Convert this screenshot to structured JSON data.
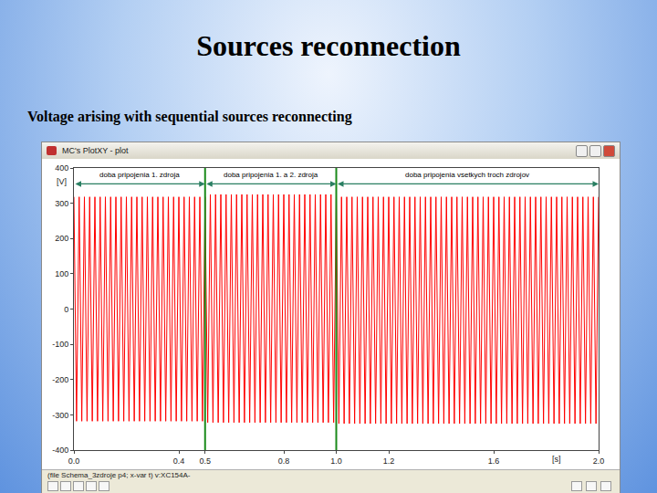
{
  "chart_data": {
    "type": "line",
    "title": "Sources reconnection",
    "subtitle": "Voltage arising with sequential sources reconnecting",
    "window_title": "MC's PlotXY - plot",
    "footnote": "(file Schema_3zdroje p4; x-var t) v:XC154A-",
    "x_label": "[s]",
    "y_label": "[V]",
    "color": "#ff0000",
    "grid": false,
    "xlim": [
      0,
      2
    ],
    "xticks": [
      {
        "value": 0,
        "label": "0.0"
      },
      0.4,
      0.5,
      0.8,
      {
        "value": 1,
        "label": "1.0"
      },
      1.2,
      1.6,
      {
        "value": 2,
        "label": "2.0"
      }
    ],
    "ylim": [
      -400,
      400
    ],
    "yticks": [
      -400,
      -300,
      -200,
      -100,
      0,
      100,
      200,
      300,
      400
    ],
    "vlines": [
      {
        "x": 0.5,
        "color": "#1a8a1a"
      },
      {
        "x": 1,
        "color": "#1a8a1a"
      }
    ],
    "annotations": [
      {
        "text": "doba pripojenia 1. zdroja",
        "x0": 0,
        "x1": 0.5,
        "y": 355
      },
      {
        "text": "doba pripojenia 1. a 2. zdroja",
        "x0": 0.5,
        "x1": 1,
        "y": 355
      },
      {
        "text": "doba pripojenia vsetkych troch zdrojov",
        "x0": 1,
        "x1": 2,
        "y": 355
      }
    ],
    "x": [
      0,
      0.01,
      0.02,
      0.03,
      0.04,
      0.05,
      0.06,
      0.07,
      0.08,
      0.09,
      0.1,
      0.11,
      0.12,
      0.13,
      0.14,
      0.15,
      0.16,
      0.17,
      0.18,
      0.19,
      0.2,
      0.21,
      0.22,
      0.23,
      0.24,
      0.25,
      0.26,
      0.27,
      0.28,
      0.29,
      0.3,
      0.31,
      0.32,
      0.33,
      0.34,
      0.35,
      0.36,
      0.37,
      0.38,
      0.39,
      0.4,
      0.41,
      0.42,
      0.43,
      0.44,
      0.45,
      0.46,
      0.47,
      0.48,
      0.49,
      0.5,
      0.51,
      0.52,
      0.53,
      0.54,
      0.55,
      0.56,
      0.57,
      0.58,
      0.59,
      0.6,
      0.61,
      0.62,
      0.63,
      0.64,
      0.65,
      0.66,
      0.67,
      0.68,
      0.69,
      0.7,
      0.71,
      0.72,
      0.73,
      0.74,
      0.75,
      0.76,
      0.77,
      0.78,
      0.79,
      0.8,
      0.81,
      0.82,
      0.83,
      0.84,
      0.85,
      0.86,
      0.87,
      0.88,
      0.89,
      0.9,
      0.91,
      0.92,
      0.93,
      0.94,
      0.95,
      0.96,
      0.97,
      0.98,
      0.99,
      1,
      1.01,
      1.02,
      1.03,
      1.04,
      1.05,
      1.06,
      1.07,
      1.08,
      1.09,
      1.1,
      1.11,
      1.12,
      1.13,
      1.14,
      1.15,
      1.16,
      1.17,
      1.18,
      1.19,
      1.2,
      1.21,
      1.22,
      1.23,
      1.24,
      1.25,
      1.26,
      1.27,
      1.28,
      1.29,
      1.3,
      1.31,
      1.32,
      1.33,
      1.34,
      1.35,
      1.36,
      1.37,
      1.38,
      1.39,
      1.4,
      1.41,
      1.42,
      1.43,
      1.44,
      1.45,
      1.46,
      1.47,
      1.48,
      1.49,
      1.5,
      1.51,
      1.52,
      1.53,
      1.54,
      1.55,
      1.56,
      1.57,
      1.58,
      1.59,
      1.6,
      1.61,
      1.62,
      1.63,
      1.64,
      1.65,
      1.66,
      1.67,
      1.68,
      1.69,
      1.7,
      1.71,
      1.72,
      1.73,
      1.74,
      1.75,
      1.76,
      1.77,
      1.78,
      1.79,
      1.8,
      1.81,
      1.82,
      1.83,
      1.84,
      1.85,
      1.86,
      1.87,
      1.88,
      1.89,
      1.9,
      1.91,
      1.92,
      1.93,
      1.94,
      1.95,
      1.96,
      1.97,
      1.98,
      1.99,
      2
    ],
    "values": [
      318,
      -318,
      318,
      -318,
      318,
      -318,
      318,
      -318,
      318,
      -318,
      318,
      -318,
      318,
      -318,
      318,
      -318,
      318,
      -318,
      318,
      -318,
      318,
      -318,
      318,
      -318,
      318,
      -318,
      318,
      -318,
      318,
      -318,
      318,
      -318,
      318,
      -318,
      318,
      -318,
      318,
      -318,
      318,
      -318,
      318,
      -318,
      318,
      -318,
      318,
      -318,
      318,
      -318,
      318,
      -318,
      318,
      -322,
      325,
      -322,
      325,
      -322,
      325,
      -322,
      325,
      -322,
      325,
      -322,
      325,
      -322,
      325,
      -322,
      325,
      -322,
      325,
      -322,
      325,
      -322,
      325,
      -322,
      325,
      -322,
      325,
      -322,
      325,
      -322,
      325,
      -322,
      325,
      -322,
      325,
      -322,
      325,
      -322,
      325,
      -322,
      325,
      -322,
      325,
      -322,
      325,
      -322,
      325,
      -322,
      325,
      -322,
      325,
      -325,
      318,
      -325,
      318,
      -325,
      318,
      -325,
      318,
      -325,
      318,
      -325,
      318,
      -325,
      318,
      -325,
      318,
      -325,
      318,
      -325,
      318,
      -325,
      318,
      -325,
      318,
      -325,
      318,
      -325,
      318,
      -325,
      318,
      -325,
      318,
      -325,
      318,
      -325,
      318,
      -325,
      318,
      -325,
      318,
      -325,
      318,
      -325,
      318,
      -325,
      318,
      -325,
      318,
      -325,
      318,
      -325,
      318,
      -325,
      318,
      -325,
      318,
      -325,
      318,
      -325,
      318,
      -325,
      318,
      -325,
      318,
      -325,
      318,
      -325,
      318,
      -325,
      318,
      -325,
      318,
      -325,
      318,
      -325,
      318,
      -325,
      318,
      -325,
      318,
      -325,
      318,
      -325,
      318,
      -325,
      318,
      -325,
      318,
      -325,
      318,
      -325,
      318,
      -325,
      318,
      -325,
      318,
      -325,
      318,
      -325,
      318
    ]
  }
}
